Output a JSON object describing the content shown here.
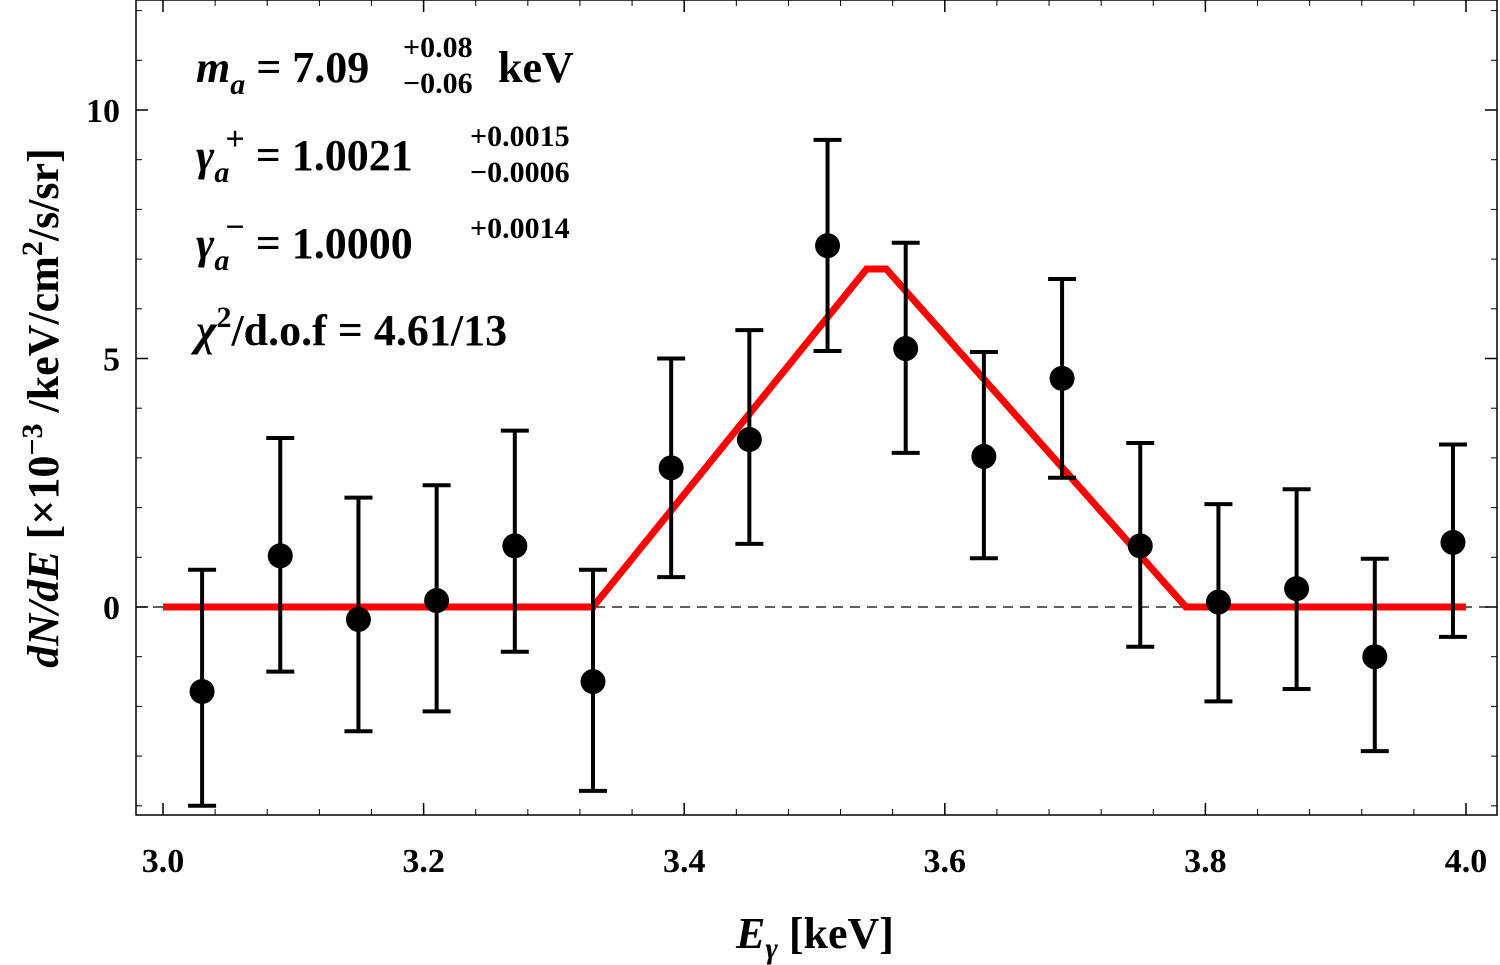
{
  "chart_data": {
    "type": "scatter",
    "title": "",
    "xlabel_symbol": "E",
    "xlabel_sub": "γ",
    "xlabel_unit": " [keV]",
    "ylabel_prefix": "dN/dE",
    "ylabel_mult": " [×10",
    "ylabel_exp": "−3",
    "ylabel_unit_a": " /keV/cm",
    "ylabel_unit_exp": "2",
    "ylabel_unit_b": "/s/sr]",
    "xlim": [
      3.0,
      4.0
    ],
    "ylim": [
      -4.2,
      12.2
    ],
    "xticks": [
      "3.0",
      "3.2",
      "3.4",
      "3.6",
      "3.8",
      "4.0"
    ],
    "xtick_values": [
      3.0,
      3.2,
      3.4,
      3.6,
      3.8,
      4.0
    ],
    "yticks": [
      "0",
      "5",
      "10"
    ],
    "ytick_values": [
      0,
      5,
      10
    ],
    "series": [
      {
        "name": "data",
        "kind": "points-with-errorbars",
        "color": "#000000",
        "x": [
          3.03,
          3.09,
          3.15,
          3.21,
          3.27,
          3.33,
          3.39,
          3.45,
          3.51,
          3.57,
          3.63,
          3.69,
          3.75,
          3.81,
          3.87,
          3.93,
          3.99
        ],
        "y": [
          -1.7,
          1.03,
          -0.25,
          0.13,
          1.23,
          -1.5,
          2.8,
          3.37,
          7.27,
          5.2,
          3.03,
          4.6,
          1.23,
          0.1,
          0.37,
          -1.0,
          1.3
        ],
        "err_low": [
          2.3,
          2.33,
          2.25,
          2.23,
          2.13,
          2.2,
          2.2,
          2.1,
          2.12,
          2.1,
          2.05,
          2.0,
          2.03,
          2.0,
          2.02,
          1.9,
          1.9
        ],
        "err_high": [
          2.45,
          2.37,
          2.45,
          2.32,
          2.32,
          2.25,
          2.2,
          2.2,
          2.13,
          2.13,
          2.1,
          2.0,
          2.07,
          1.97,
          2.0,
          1.97,
          1.97
        ]
      },
      {
        "name": "fit",
        "kind": "line",
        "color": "#ff0000",
        "x": [
          3.0,
          3.33,
          3.54,
          3.555,
          3.785,
          4.0
        ],
        "y": [
          0,
          0,
          6.8,
          6.8,
          0,
          0
        ]
      }
    ],
    "zero_line": true,
    "annotations": {
      "line1": {
        "sym": "m",
        "sub": "a",
        "eq": " = 7.09",
        "sup": "+0.08",
        "low": "−0.06",
        "unit": " keV"
      },
      "line2": {
        "sym": "γ",
        "sub": "a",
        "supsym": "+",
        "eq": " = 1.0021",
        "sup": "+0.0015",
        "low": "−0.0006"
      },
      "line3": {
        "sym": "γ",
        "sub": "a",
        "supsym": "−",
        "eq": " = 1.0000",
        "sup": "+0.0014"
      },
      "line4": {
        "sym": "χ",
        "supsym": "2",
        "eq": "/d.o.f = 4.61/13"
      }
    }
  }
}
